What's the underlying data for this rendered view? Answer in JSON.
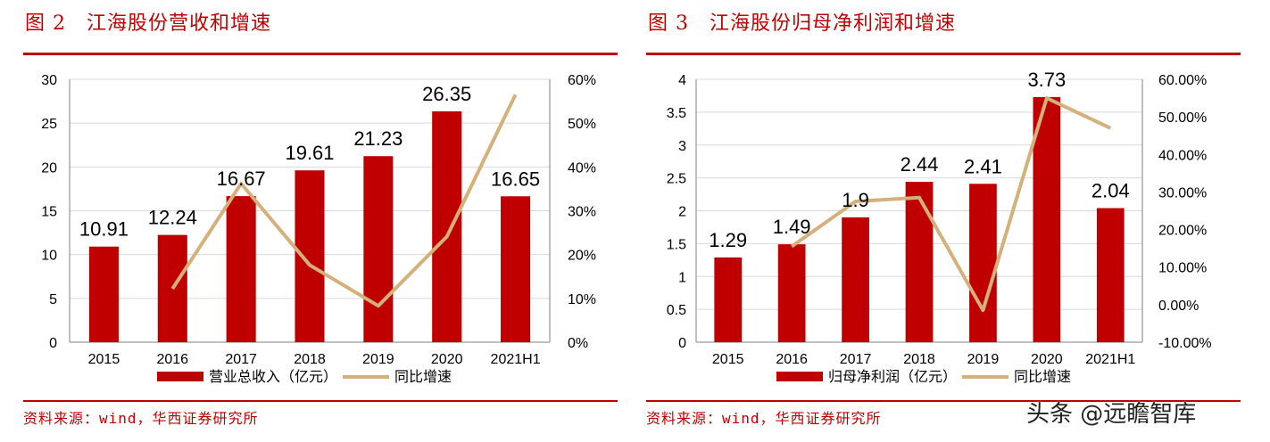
{
  "left": {
    "title": "图 2　江海股份营收和增速",
    "source": "资料来源：wind，华西证券研究所"
  },
  "right": {
    "title": "图 3　江海股份归母净利润和增速",
    "source": "资料来源：wind，华西证券研究所"
  },
  "watermark": "头条 @远瞻智库",
  "colors": {
    "bar": "#c00000",
    "line": "#d4b07a",
    "accent": "#c00000"
  },
  "chart_data": [
    {
      "type": "bar",
      "categories": [
        "2015",
        "2016",
        "2017",
        "2018",
        "2019",
        "2020",
        "2021H1"
      ],
      "series": [
        {
          "name": "营业总收入（亿元）",
          "type": "bar",
          "axis": "left",
          "values": [
            10.91,
            12.24,
            16.67,
            19.61,
            21.23,
            26.35,
            16.65
          ],
          "labels": [
            "10.91",
            "12.24",
            "16.67",
            "19.61",
            "21.23",
            "26.35",
            "16.65"
          ]
        },
        {
          "name": "同比增速",
          "type": "line",
          "axis": "right",
          "values": [
            null,
            0.122,
            0.362,
            0.176,
            0.083,
            0.241,
            0.565
          ]
        }
      ],
      "ylim": [
        0,
        30
      ],
      "yticks": [
        "0",
        "5",
        "10",
        "15",
        "20",
        "25",
        "30"
      ],
      "y2lim": [
        0,
        0.6
      ],
      "y2ticks": [
        "0%",
        "10%",
        "20%",
        "30%",
        "40%",
        "50%",
        "60%"
      ],
      "grid": true,
      "legend": "bottom"
    },
    {
      "type": "bar",
      "categories": [
        "2015",
        "2016",
        "2017",
        "2018",
        "2019",
        "2020",
        "2021H1"
      ],
      "series": [
        {
          "name": "归母净利润（亿元）",
          "type": "bar",
          "axis": "left",
          "values": [
            1.29,
            1.49,
            1.9,
            2.44,
            2.41,
            3.73,
            2.04
          ],
          "labels": [
            "1.29",
            "1.49",
            "1.9",
            "2.44",
            "2.41",
            "3.73",
            "2.04"
          ]
        },
        {
          "name": "同比增速",
          "type": "line",
          "axis": "right",
          "values": [
            null,
            0.155,
            0.275,
            0.285,
            -0.015,
            0.55,
            0.47
          ]
        }
      ],
      "ylim": [
        0,
        4
      ],
      "yticks": [
        "0",
        "0.5",
        "1",
        "1.5",
        "2",
        "2.5",
        "3",
        "3.5",
        "4"
      ],
      "y2lim": [
        -0.1,
        0.6
      ],
      "y2ticks": [
        "-10.00%",
        "0.00%",
        "10.00%",
        "20.00%",
        "30.00%",
        "40.00%",
        "50.00%",
        "60.00%"
      ],
      "grid": true,
      "legend": "bottom"
    }
  ]
}
